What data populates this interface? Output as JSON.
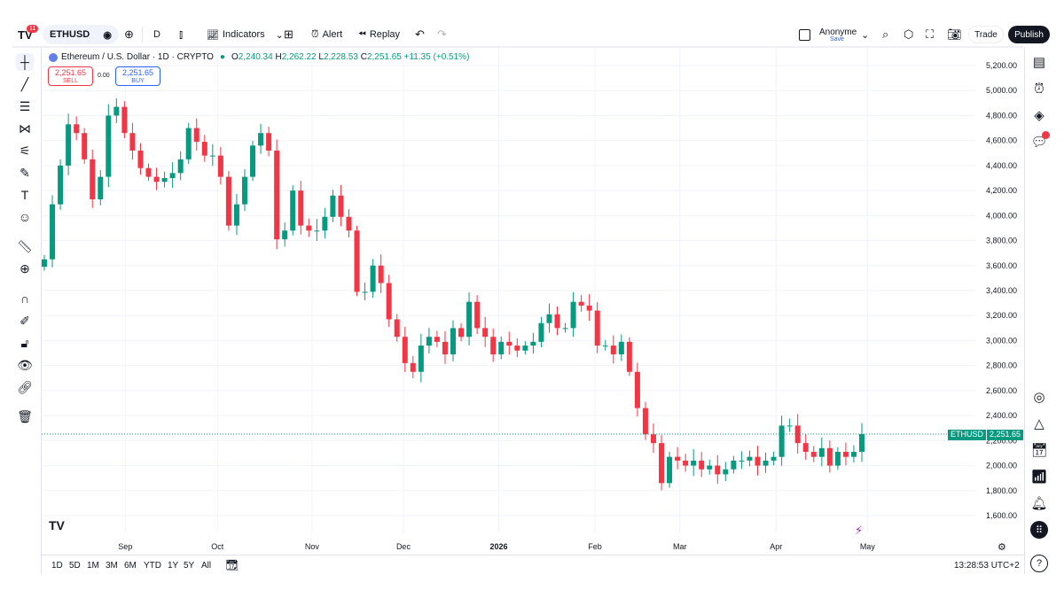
{
  "toolbar": {
    "logo": "TV",
    "notif_count": "11",
    "symbol": "ETHUSD",
    "interval": "D",
    "indicators": "Indicators",
    "alert": "Alert",
    "replay": "Replay",
    "layout_name": "Anonyme",
    "save": "Save",
    "trade": "Trade",
    "publish": "Publish"
  },
  "legend": {
    "title": "Ethereum / U.S. Dollar · 1D · CRYPTO",
    "o_label": "O",
    "o": "2,240.34",
    "h_label": "H",
    "h": "2,262.22",
    "l_label": "L",
    "l": "2,228.53",
    "c_label": "C",
    "c": "2,251.65",
    "change": "+11.35 (+0.51%)",
    "sell_price": "2,251.65",
    "sell": "SELL",
    "spread": "0.00",
    "buy_price": "2,251.65",
    "buy": "BUY"
  },
  "price_badge": {
    "symbol": "ETHUSD",
    "price": "2,251.65"
  },
  "bottom": {
    "ranges": [
      "1D",
      "5D",
      "1M",
      "3M",
      "6M",
      "YTD",
      "1Y",
      "5Y",
      "All"
    ],
    "clock": "13:28:53 UTC+2"
  },
  "colors": {
    "up": "#089981",
    "down": "#f23645",
    "accent": "#2962ff"
  },
  "chart_data": {
    "type": "candlestick",
    "title": "Ethereum / U.S. Dollar · 1D · CRYPTO",
    "ylim": [
      1500,
      5300
    ],
    "y_ticks": [
      "5,200.00",
      "5,000.00",
      "4,800.00",
      "4,600.00",
      "4,400.00",
      "4,200.00",
      "4,000.00",
      "3,800.00",
      "3,600.00",
      "3,400.00",
      "3,200.00",
      "3,000.00",
      "2,800.00",
      "2,600.00",
      "2,400.00",
      "2,200.00",
      "2,000.00",
      "1,800.00",
      "1,600.00"
    ],
    "y_tick_values": [
      5200,
      5000,
      4800,
      4600,
      4400,
      4200,
      4000,
      3800,
      3600,
      3400,
      3200,
      3000,
      2800,
      2600,
      2400,
      2200,
      2000,
      1800,
      1600
    ],
    "x_ticks": [
      {
        "label": "Sep",
        "idx": 10.1
      },
      {
        "label": "Oct",
        "idx": 21.6
      },
      {
        "label": "Nov",
        "idx": 33.4
      },
      {
        "label": "Dec",
        "idx": 44.8
      },
      {
        "label": "2026",
        "idx": 56.7,
        "bold": true
      },
      {
        "label": "Feb",
        "idx": 68.7
      },
      {
        "label": "Mar",
        "idx": 79.3
      },
      {
        "label": "Apr",
        "idx": 91.3
      },
      {
        "label": "May",
        "idx": 102.7
      }
    ],
    "closes": [
      3650,
      4090,
      4400,
      4730,
      4660,
      4450,
      4130,
      4310,
      4800,
      4870,
      4660,
      4520,
      4380,
      4310,
      4270,
      4300,
      4340,
      4450,
      4700,
      4590,
      4480,
      4480,
      4310,
      3920,
      4090,
      4310,
      4560,
      4660,
      4520,
      3810,
      3880,
      4200,
      3920,
      3880,
      3880,
      3990,
      4160,
      3990,
      3880,
      3390,
      3390,
      3600,
      3460,
      3170,
      3030,
      2820,
      2750,
      2960,
      3030,
      2990,
      2890,
      3100,
      3030,
      3310,
      3100,
      3030,
      2890,
      2990,
      2960,
      2920,
      2960,
      2990,
      3140,
      3210,
      3100,
      3100,
      3310,
      3280,
      3240,
      2960,
      2960,
      2890,
      2990,
      2750,
      2460,
      2250,
      2180,
      1860,
      2070,
      2040,
      2000,
      2040,
      1970,
      2000,
      1930,
      1970,
      2040,
      2040,
      2070,
      2000,
      2040,
      2070,
      2320,
      2320,
      2180,
      2110,
      2070,
      2140,
      2000,
      2110,
      2070,
      2110,
      2251.65
    ],
    "last_price": 2251.65
  }
}
